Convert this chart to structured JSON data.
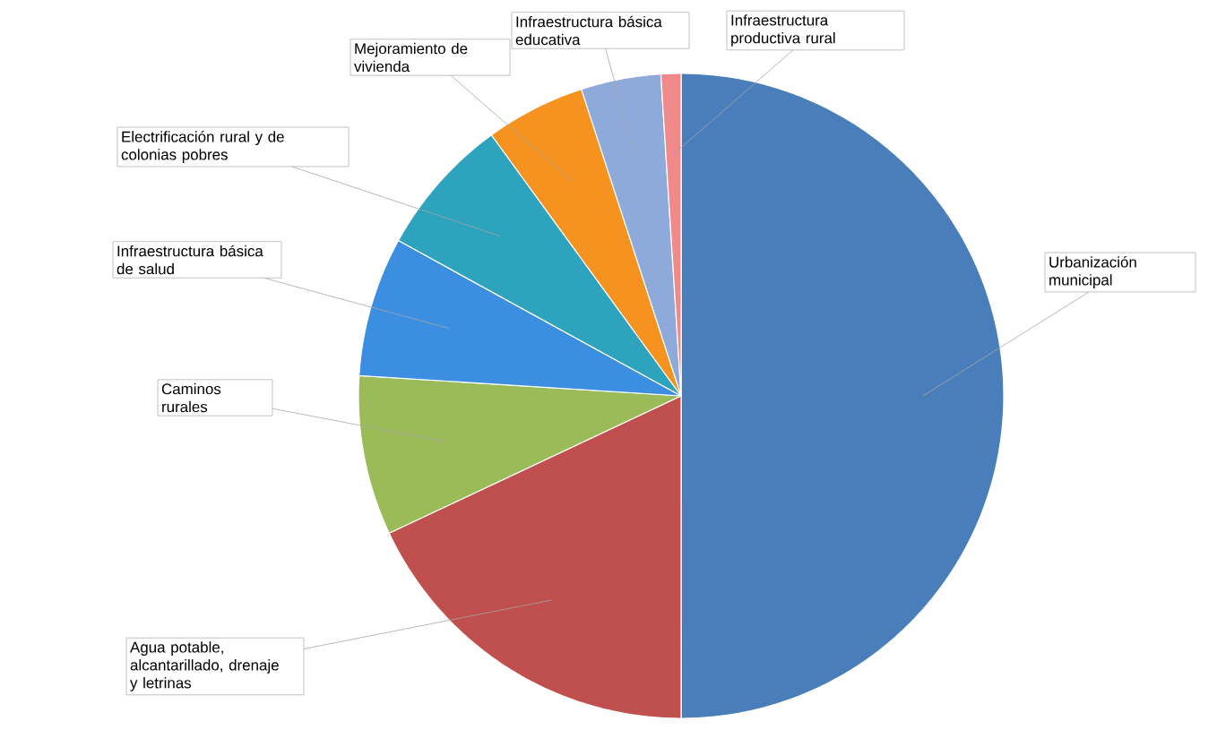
{
  "chart_data": {
    "type": "pie",
    "categories": [
      "Urbanización municipal",
      "Agua potable, alcantarillado, drenaje y letrinas",
      "Caminos rurales",
      "Infraestructura básica de salud",
      "Electrificación rural y de colonias pobres",
      "Mejoramiento de vivienda",
      "Infraestructura básica educativa",
      "Infraestructura productiva rural"
    ],
    "values": [
      50,
      18,
      8,
      7,
      7,
      5,
      4,
      1
    ],
    "colors": [
      "#4a7ebb",
      "#c0504d",
      "#9bbb59",
      "#3c8fe0",
      "#2ea3be",
      "#f59220",
      "#8eaadb",
      "#f08a8a"
    ]
  }
}
